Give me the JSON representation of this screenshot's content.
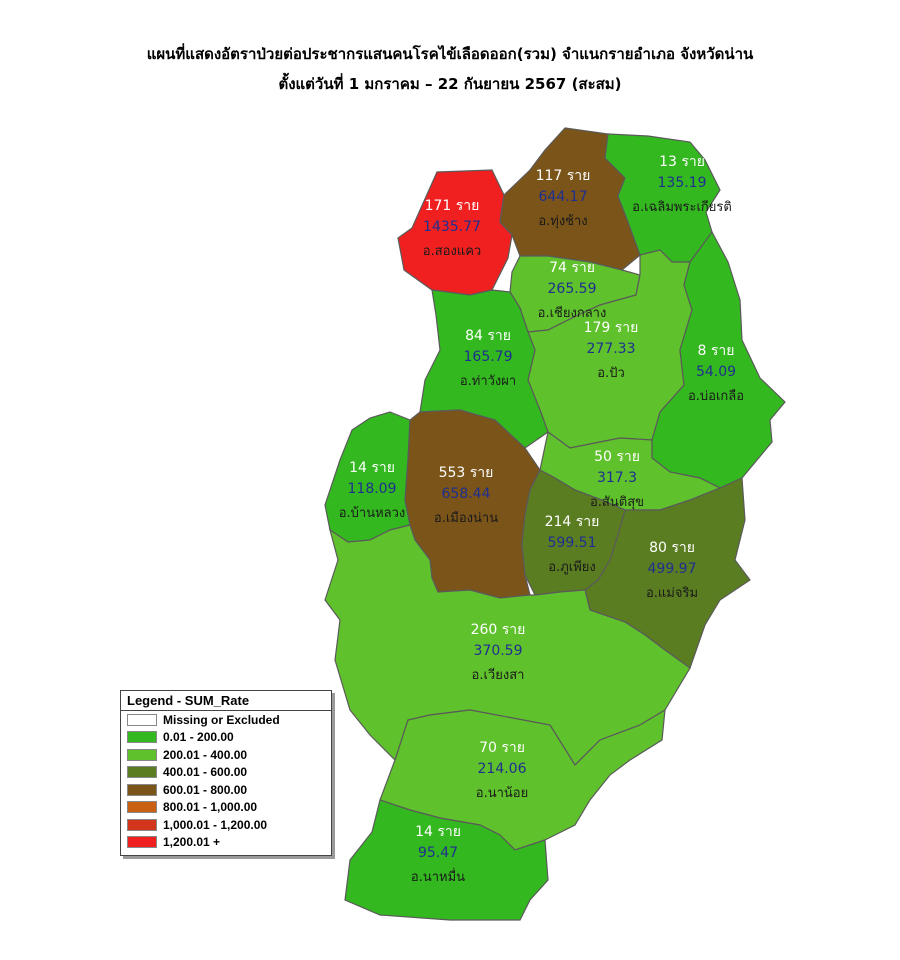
{
  "title": {
    "line1": "แผนที่แสดงอัตราป่วยต่อประชากรแสนคนโรคไข้เลือดออก(รวม) จำแนกรายอำเภอ จังหวัดน่าน",
    "line2": "ตั้งแต่วันที่ 1 มกราคม – 22 กันยายน 2567 (สะสม)"
  },
  "legend": {
    "title": "Legend - SUM_Rate",
    "items": [
      {
        "label": "Missing or Excluded",
        "color": "#ffffff"
      },
      {
        "label": "0.01 - 200.00",
        "color": "#33b81f"
      },
      {
        "label": "200.01 - 400.00",
        "color": "#5fc12b"
      },
      {
        "label": "400.01 - 600.00",
        "color": "#5a7d22"
      },
      {
        "label": "600.01 - 800.00",
        "color": "#7a5419"
      },
      {
        "label": "800.01 - 1,000.00",
        "color": "#c96012"
      },
      {
        "label": "1,000.01 - 1,200.00",
        "color": "#d2351b"
      },
      {
        "label": "1,200.01 +",
        "color": "#f02020"
      }
    ]
  },
  "districts": [
    {
      "key": "songkhwae",
      "name": "อ.สองแคว",
      "cases": "171 ราย",
      "rate": "1435.77",
      "color": "#f02020"
    },
    {
      "key": "thungchang",
      "name": "อ.ทุ่งช้าง",
      "cases": "117 ราย",
      "rate": "644.17",
      "color": "#7a5419"
    },
    {
      "key": "chaloem",
      "name": "อ.เฉลิมพระเกียรติ",
      "cases": "13 ราย",
      "rate": "135.19",
      "color": "#33b81f"
    },
    {
      "key": "chiangklang",
      "name": "อ.เชียงกลาง",
      "cases": "74 ราย",
      "rate": "265.59",
      "color": "#5fc12b"
    },
    {
      "key": "pua",
      "name": "อ.ปัว",
      "cases": "179 ราย",
      "rate": "277.33",
      "color": "#5fc12b"
    },
    {
      "key": "thawangpha",
      "name": "อ.ท่าวังผา",
      "cases": "84 ราย",
      "rate": "165.79",
      "color": "#33b81f"
    },
    {
      "key": "boklua",
      "name": "อ.บ่อเกลือ",
      "cases": "8 ราย",
      "rate": "54.09",
      "color": "#33b81f"
    },
    {
      "key": "bandluang",
      "name": "อ.บ้านหลวง",
      "cases": "14 ราย",
      "rate": "118.09",
      "color": "#33b81f"
    },
    {
      "key": "muangnan",
      "name": "อ.เมืองน่าน",
      "cases": "553 ราย",
      "rate": "658.44",
      "color": "#7a5419"
    },
    {
      "key": "santisuk",
      "name": "อ.สันติสุข",
      "cases": "50 ราย",
      "rate": "317.3",
      "color": "#5fc12b"
    },
    {
      "key": "phukhiang",
      "name": "อ.ภูเพียง",
      "cases": "214 ราย",
      "rate": "599.51",
      "color": "#5a7d22"
    },
    {
      "key": "maecharim",
      "name": "อ.แม่จริม",
      "cases": "80 ราย",
      "rate": "499.97",
      "color": "#5a7d22"
    },
    {
      "key": "wiangsa",
      "name": "อ.เวียงสา",
      "cases": "260 ราย",
      "rate": "370.59",
      "color": "#5fc12b"
    },
    {
      "key": "nanoi",
      "name": "อ.นาน้อย",
      "cases": "70 ราย",
      "rate": "214.06",
      "color": "#5fc12b"
    },
    {
      "key": "namuen",
      "name": "อ.นาหมื่น",
      "cases": "14 ราย",
      "rate": "95.47",
      "color": "#33b81f"
    }
  ]
}
